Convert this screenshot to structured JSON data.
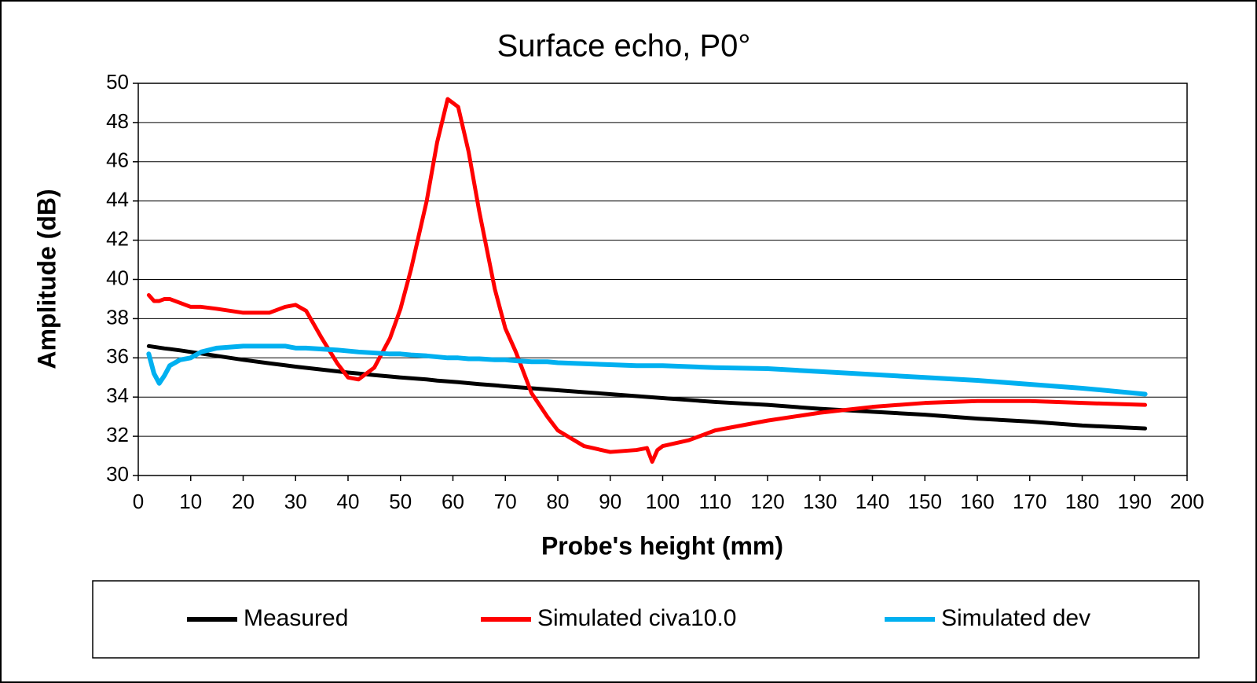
{
  "chart_data": {
    "type": "line",
    "title": "Surface echo, P0°",
    "x_label": "Probe's height (mm)",
    "y_label": "Amplitude (dB)",
    "x": [
      2,
      3,
      4,
      5,
      6,
      8,
      10,
      12,
      15,
      20,
      25,
      28,
      30,
      32,
      35,
      38,
      40,
      42,
      45,
      48,
      50,
      52,
      55,
      57,
      59,
      61,
      63,
      65,
      68,
      70,
      72,
      75,
      78,
      80,
      85,
      90,
      95,
      97,
      98,
      99,
      100,
      105,
      110,
      120,
      130,
      140,
      150,
      160,
      170,
      180,
      192
    ],
    "series": [
      {
        "name": "Measured",
        "color": "#000000",
        "values": [
          36.6,
          36.56,
          36.52,
          36.48,
          36.45,
          36.38,
          36.3,
          36.22,
          36.1,
          35.9,
          35.72,
          35.62,
          35.55,
          35.49,
          35.4,
          35.31,
          35.25,
          35.2,
          35.12,
          35.05,
          35.0,
          34.96,
          34.9,
          34.84,
          34.8,
          34.76,
          34.71,
          34.66,
          34.6,
          34.55,
          34.51,
          34.45,
          34.39,
          34.35,
          34.25,
          34.15,
          34.05,
          34.01,
          33.99,
          33.97,
          33.95,
          33.85,
          33.75,
          33.6,
          33.4,
          33.25,
          33.1,
          32.9,
          32.75,
          32.55,
          32.4
        ]
      },
      {
        "name": "Simulated civa10.0",
        "color": "#ff0000",
        "values": [
          39.2,
          38.9,
          38.9,
          39.0,
          39.0,
          38.8,
          38.6,
          38.6,
          38.5,
          38.3,
          38.3,
          38.6,
          38.7,
          38.4,
          37.0,
          35.7,
          35.0,
          34.9,
          35.5,
          37.0,
          38.5,
          40.5,
          44.0,
          47.0,
          49.2,
          48.8,
          46.5,
          43.5,
          39.5,
          37.5,
          36.3,
          34.2,
          33.0,
          32.3,
          31.5,
          31.2,
          31.3,
          31.4,
          30.7,
          31.3,
          31.5,
          31.8,
          32.3,
          32.8,
          33.2,
          33.5,
          33.7,
          33.8,
          33.8,
          33.7,
          33.6
        ]
      },
      {
        "name": "Simulated dev",
        "color": "#00b0f0",
        "values": [
          36.2,
          35.2,
          34.7,
          35.1,
          35.6,
          35.9,
          36.0,
          36.3,
          36.5,
          36.6,
          36.6,
          36.6,
          36.5,
          36.5,
          36.45,
          36.4,
          36.35,
          36.3,
          36.25,
          36.2,
          36.2,
          36.15,
          36.1,
          36.05,
          36.0,
          36.0,
          35.95,
          35.95,
          35.9,
          35.9,
          35.85,
          35.8,
          35.8,
          35.75,
          35.7,
          35.65,
          35.6,
          35.6,
          35.6,
          35.6,
          35.6,
          35.55,
          35.5,
          35.45,
          35.3,
          35.15,
          35.0,
          34.85,
          34.65,
          34.45,
          34.15
        ]
      }
    ],
    "xlim": [
      0,
      200
    ],
    "xticks": [
      0,
      10,
      20,
      30,
      40,
      50,
      60,
      70,
      80,
      90,
      100,
      110,
      120,
      130,
      140,
      150,
      160,
      170,
      180,
      190,
      200
    ],
    "ylim": [
      30,
      50
    ],
    "yticks": [
      30,
      32,
      34,
      36,
      38,
      40,
      42,
      44,
      46,
      48,
      50
    ],
    "grid": true,
    "legend": "bottom"
  }
}
